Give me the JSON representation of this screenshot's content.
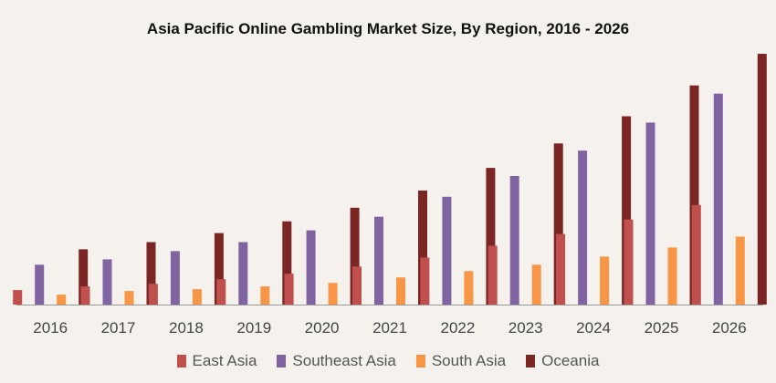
{
  "chart_data": {
    "type": "bar",
    "title": "Asia Pacific Online Gambling Market Size, By Region, 2016  -  2026",
    "xlabel": "",
    "ylabel": "",
    "categories": [
      "2016",
      "2017",
      "2018",
      "2019",
      "2020",
      "2021",
      "2022",
      "2023",
      "2024",
      "2025",
      "2026"
    ],
    "ylim": [
      0,
      280
    ],
    "grid": false,
    "legend_position": "bottom",
    "series": [
      {
        "name": "East Asia",
        "color": "#c0504d",
        "values": [
          16,
          20,
          23,
          28,
          34,
          42,
          52,
          65,
          78,
          94,
          110
        ]
      },
      {
        "name": "Southeast Asia",
        "color": "#8064a2",
        "values": [
          44,
          50,
          59,
          69,
          82,
          97,
          119,
          142,
          170,
          201,
          233
        ]
      },
      {
        "name": "South Asia",
        "color": "#f79646",
        "values": [
          11,
          15,
          17,
          20,
          24,
          30,
          37,
          44,
          53,
          63,
          75
        ]
      },
      {
        "name": "Oceania",
        "color": "#7b2525",
        "values": [
          61,
          69,
          79,
          92,
          107,
          126,
          151,
          178,
          208,
          242,
          277
        ]
      }
    ]
  }
}
